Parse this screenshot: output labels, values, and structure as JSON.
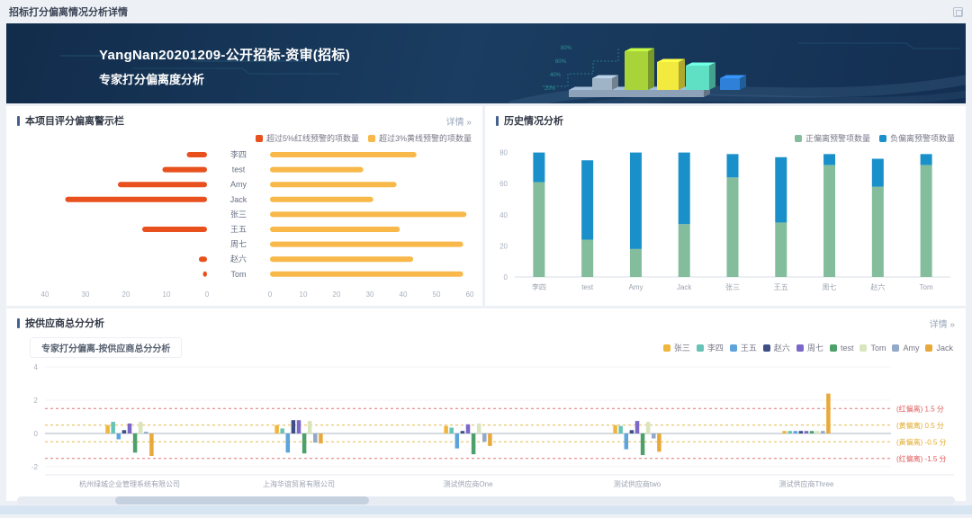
{
  "page": {
    "title": "招标打分偏离情况分析详情"
  },
  "banner": {
    "line1": "YangNan20201209-公开招标-资审(招标)",
    "line2": "专家打分偏离度分析",
    "deco_percents": [
      "20%",
      "40%",
      "60%",
      "80%"
    ],
    "illustration_colors": [
      "#9fb4c6",
      "#a8d43a",
      "#f2ea3f",
      "#5fe0c4",
      "#2f80d8"
    ]
  },
  "panels": {
    "warning": {
      "title": "本项目评分偏离警示栏",
      "more": "详情 »"
    },
    "history": {
      "title": "历史情况分析"
    },
    "supplier": {
      "title": "按供应商总分分析",
      "more": "详情 »"
    }
  },
  "chart_data": [
    {
      "id": "warning",
      "type": "bar",
      "subtype": "dual-horizontal",
      "title": "本项目评分偏离警示栏",
      "legend_position": "top-right",
      "categories": [
        "李四",
        "test",
        "Amy",
        "Jack",
        "张三",
        "王五",
        "周七",
        "赵六",
        "Tom"
      ],
      "series": [
        {
          "name": "超过5%红线预警的项数量",
          "color": "#e8501e",
          "direction": "left",
          "values": [
            5,
            11,
            22,
            35,
            0,
            16,
            0,
            2,
            1
          ],
          "axis_ticks": [
            40,
            30,
            20,
            10,
            0
          ]
        },
        {
          "name": "超过3%黄线预警的项数量",
          "color": "#f8b84a",
          "direction": "right",
          "values": [
            44,
            28,
            38,
            31,
            59,
            39,
            58,
            43,
            58
          ],
          "axis_ticks": [
            0,
            10,
            20,
            30,
            40,
            50,
            60
          ]
        }
      ]
    },
    {
      "id": "history",
      "type": "bar",
      "subtype": "stacked-vertical",
      "title": "历史情况分析",
      "legend_position": "top-right",
      "categories": [
        "李四",
        "test",
        "Amy",
        "Jack",
        "张三",
        "王五",
        "周七",
        "赵六",
        "Tom"
      ],
      "ylim": [
        0,
        80
      ],
      "yticks": [
        0,
        20,
        40,
        60,
        80
      ],
      "series": [
        {
          "name": "正偏离预警项数量",
          "color": "#83bd9c",
          "values": [
            61,
            24,
            18,
            34,
            64,
            35,
            72,
            58,
            72
          ]
        },
        {
          "name": "负偏离预警项数量",
          "color": "#1a90cb",
          "values": [
            19,
            51,
            62,
            46,
            15,
            42,
            7,
            18,
            7
          ]
        }
      ]
    },
    {
      "id": "supplier",
      "type": "bar",
      "subtype": "grouped-vertical",
      "title": "专家打分偏离-按供应商总分分析",
      "legend_position": "top-right",
      "categories": [
        "杭州绿城企业管理系统有限公司",
        "上海华谊贸易有限公司",
        "测试供应商One",
        "测试供应商two",
        "测试供应商Three"
      ],
      "ylim": [
        -4,
        4
      ],
      "yticks": [
        4,
        2,
        0,
        -2
      ],
      "guides": [
        {
          "y": 1.5,
          "color": "#e05c5c",
          "label": "(红偏离) 1.5 分"
        },
        {
          "y": 0.5,
          "color": "#e2ac30",
          "label": "(黄偏离) 0.5 分"
        },
        {
          "y": -0.5,
          "color": "#e2ac30",
          "label": "(黄偏离) -0.5 分"
        },
        {
          "y": -1.5,
          "color": "#e05c5c",
          "label": "(红偏离) -1.5 分"
        }
      ],
      "series": [
        {
          "name": "张三",
          "color": "#f0b63c",
          "values": [
            0.5,
            0.5,
            0.45,
            0.5,
            0.15
          ]
        },
        {
          "name": "李四",
          "color": "#67c3b5",
          "values": [
            0.7,
            0.3,
            0.35,
            0.45,
            0.15
          ]
        },
        {
          "name": "王五",
          "color": "#5da3dc",
          "values": [
            -0.35,
            -1.15,
            -0.9,
            -0.95,
            0.15
          ]
        },
        {
          "name": "赵六",
          "color": "#3d4f85",
          "values": [
            0.2,
            0.8,
            0.15,
            0.2,
            0.15
          ]
        },
        {
          "name": "周七",
          "color": "#7b68c8",
          "values": [
            0.6,
            0.8,
            0.55,
            0.75,
            0.15
          ]
        },
        {
          "name": "test",
          "color": "#4ea06b",
          "values": [
            -1.15,
            -1.2,
            -1.25,
            -1.3,
            0.15
          ]
        },
        {
          "name": "Tom",
          "color": "#d9e6bd",
          "values": [
            0.7,
            0.75,
            0.6,
            0.7,
            0.15
          ]
        },
        {
          "name": "Amy",
          "color": "#93a9c9",
          "values": [
            0.1,
            -0.55,
            -0.5,
            -0.3,
            0.15
          ]
        },
        {
          "name": "Jack",
          "color": "#e8a93c",
          "values": [
            -1.35,
            -0.6,
            -0.75,
            -1.1,
            2.4
          ]
        }
      ]
    }
  ]
}
